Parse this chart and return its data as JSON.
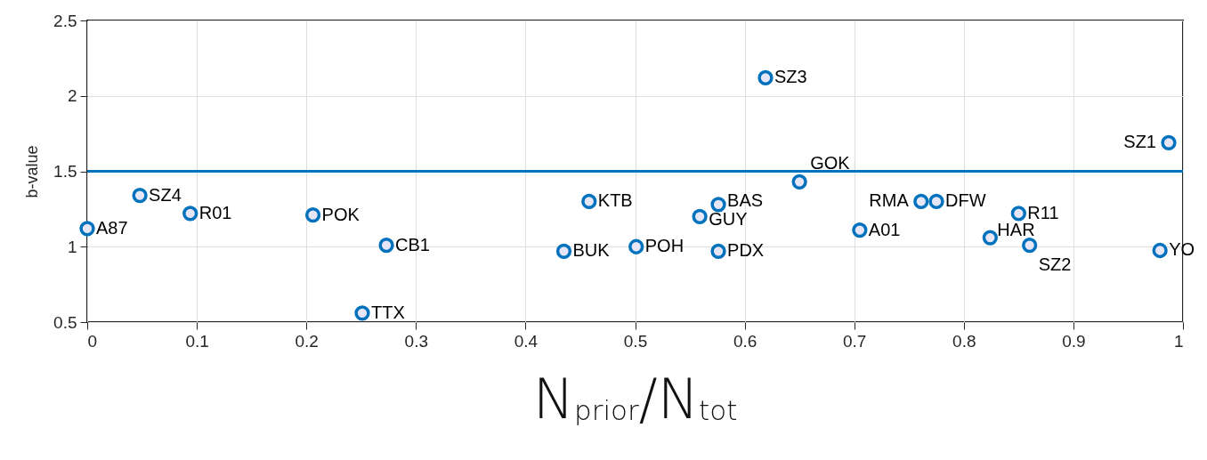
{
  "chart_data": {
    "type": "scatter",
    "xlabel": "N$_{prior}$/N$_{tot}$",
    "ylabel": "b-value",
    "x": [
      0.0,
      0.048,
      0.094,
      0.206,
      0.273,
      0.251,
      0.458,
      0.435,
      0.501,
      0.559,
      0.576,
      0.576,
      0.619,
      0.65,
      0.705,
      0.761,
      0.775,
      0.824,
      0.85,
      0.86,
      0.979,
      0.987
    ],
    "series": [
      {
        "color": "#0072bd",
        "values": [
          1.12,
          1.34,
          1.22,
          1.21,
          1.01,
          0.56,
          1.3,
          0.97,
          1.0,
          1.2,
          1.28,
          0.97,
          2.12,
          1.43,
          1.11,
          1.3,
          1.3,
          1.06,
          1.22,
          1.01,
          0.975,
          1.69
        ]
      }
    ],
    "marker": "circle",
    "xlim": [
      0,
      1
    ],
    "xticks": [
      0,
      0.1,
      0.2,
      0.3,
      0.4,
      0.5,
      0.6,
      0.7,
      0.8,
      0.9,
      1
    ],
    "ylim": [
      0.5,
      2.5
    ],
    "yticks": [
      0.5,
      1,
      1.5,
      2,
      2.5
    ],
    "grid": true,
    "ref_lines": [
      {
        "axis": "y",
        "value": 1.5,
        "color": "#0072bd"
      }
    ],
    "annotations": [
      {
        "text": "A87",
        "x": 0.0,
        "y": 1.12
      },
      {
        "text": "SZ4",
        "x": 0.048,
        "y": 1.34
      },
      {
        "text": "R01",
        "x": 0.094,
        "y": 1.22
      },
      {
        "text": "POK",
        "x": 0.206,
        "y": 1.21
      },
      {
        "text": "CB1",
        "x": 0.273,
        "y": 1.01
      },
      {
        "text": "TTX",
        "x": 0.251,
        "y": 0.56
      },
      {
        "text": "KTB",
        "x": 0.458,
        "y": 1.3
      },
      {
        "text": "BUK",
        "x": 0.435,
        "y": 0.97
      },
      {
        "text": "POH",
        "x": 0.501,
        "y": 1.0
      },
      {
        "text": "GUY",
        "x": 0.559,
        "y": 1.2
      },
      {
        "text": "BAS",
        "x": 0.576,
        "y": 1.28
      },
      {
        "text": "PDX",
        "x": 0.576,
        "y": 0.97
      },
      {
        "text": "SZ3",
        "x": 0.619,
        "y": 2.12
      },
      {
        "text": "GOK",
        "x": 0.65,
        "y": 1.43
      },
      {
        "text": "A01",
        "x": 0.705,
        "y": 1.11
      },
      {
        "text": "RMA",
        "x": 0.761,
        "y": 1.3
      },
      {
        "text": "DFW",
        "x": 0.775,
        "y": 1.3
      },
      {
        "text": "HAR",
        "x": 0.824,
        "y": 1.06
      },
      {
        "text": "R11",
        "x": 0.85,
        "y": 1.22
      },
      {
        "text": "SZ2",
        "x": 0.86,
        "y": 1.01
      },
      {
        "text": "YO",
        "x": 0.979,
        "y": 0.975
      },
      {
        "text": "SZ1",
        "x": 0.987,
        "y": 1.69
      }
    ]
  }
}
